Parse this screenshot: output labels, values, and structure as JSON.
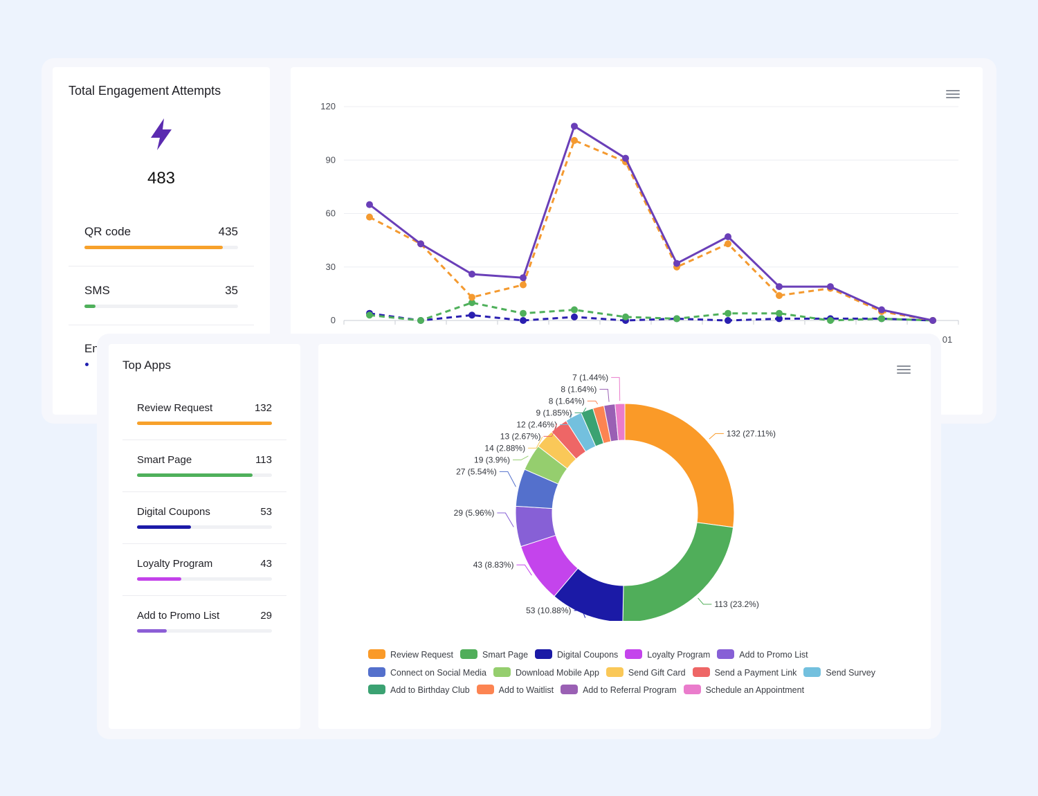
{
  "engagement": {
    "title": "Total Engagement Attempts",
    "icon": "lightning-bolt-icon",
    "total": "483",
    "rows": [
      {
        "label": "QR code",
        "value": "435",
        "fraction": 0.9,
        "color": "#f7a12b"
      },
      {
        "label": "SMS",
        "value": "35",
        "fraction": 0.07,
        "color": "#4fb05b"
      },
      {
        "label": "En",
        "value": "",
        "fraction": 0.0,
        "color": "#2020b0"
      }
    ]
  },
  "top_apps": {
    "title": "Top Apps",
    "rows": [
      {
        "label": "Review Request",
        "value": "132",
        "fraction": 1.0,
        "color": "#f7a12b"
      },
      {
        "label": "Smart Page",
        "value": "113",
        "fraction": 0.856,
        "color": "#4fb05b"
      },
      {
        "label": "Digital Coupons",
        "value": "53",
        "fraction": 0.4,
        "color": "#1c1aa8"
      },
      {
        "label": "Loyalty Program",
        "value": "43",
        "fraction": 0.33,
        "color": "#c342ea"
      },
      {
        "label": "Add to Promo List",
        "value": "29",
        "fraction": 0.22,
        "color": "#8c5ed6"
      }
    ]
  },
  "chart_data": [
    {
      "type": "line",
      "ylim": [
        0,
        120
      ],
      "yticks": [
        "0",
        "30",
        "60",
        "90",
        "120"
      ],
      "x_partial_label": "01",
      "series": [
        {
          "color": "#6a3fb8",
          "style": "solid",
          "values": [
            65,
            43,
            26,
            24,
            109,
            91,
            32,
            47,
            19,
            19,
            6,
            0
          ]
        },
        {
          "color": "#f49a30",
          "style": "dashed",
          "values": [
            58,
            43,
            13,
            20,
            101,
            89,
            30,
            43,
            14,
            18,
            5,
            0
          ]
        },
        {
          "color": "#4fb05b",
          "style": "dashed",
          "values": [
            3,
            0,
            10,
            4,
            6,
            2,
            1,
            4,
            4,
            0,
            1,
            0
          ]
        },
        {
          "color": "#2a1fb0",
          "style": "dashed",
          "values": [
            4,
            0,
            3,
            0,
            2,
            0,
            1,
            0,
            1,
            1,
            1,
            0
          ]
        }
      ]
    },
    {
      "type": "pie",
      "donut": true,
      "slices": [
        {
          "name": "Review Request",
          "value": 132,
          "label": "132 (27.11%)",
          "color": "#fa9a28"
        },
        {
          "name": "Smart Page",
          "value": 113,
          "label": "113 (23.2%)",
          "color": "#50ae5a"
        },
        {
          "name": "Digital Coupons",
          "value": 53,
          "label": "53 (10.88%)",
          "color": "#1b1aa6"
        },
        {
          "name": "Loyalty Program",
          "value": 43,
          "label": "43 (8.83%)",
          "color": "#c444ec"
        },
        {
          "name": "Add to Promo List",
          "value": 29,
          "label": "29 (5.96%)",
          "color": "#8760d6"
        },
        {
          "name": "Connect on Social Media",
          "value": 27,
          "label": "27 (5.54%)",
          "color": "#5470cc"
        },
        {
          "name": "Download Mobile App",
          "value": 19,
          "label": "19 (3.9%)",
          "color": "#95ce6e"
        },
        {
          "name": "Send Gift Card",
          "value": 14,
          "label": "14 (2.88%)",
          "color": "#fac858"
        },
        {
          "name": "Send a Payment Link",
          "value": 13,
          "label": "13 (2.67%)",
          "color": "#ee6666"
        },
        {
          "name": "Send Survey",
          "value": 12,
          "label": "12 (2.46%)",
          "color": "#73c0de"
        },
        {
          "name": "Add to Birthday Club",
          "value": 9,
          "label": "9 (1.85%)",
          "color": "#3ba272"
        },
        {
          "name": "Add to Waitlist",
          "value": 8,
          "label": "8 (1.64%)",
          "color": "#fc8452"
        },
        {
          "name": "Add to Referral Program",
          "value": 8,
          "label": "8 (1.64%)",
          "color": "#9a60b4"
        },
        {
          "name": "Schedule an Appointment",
          "value": 7,
          "label": "7 (1.44%)",
          "color": "#ea7ccc"
        }
      ]
    }
  ]
}
